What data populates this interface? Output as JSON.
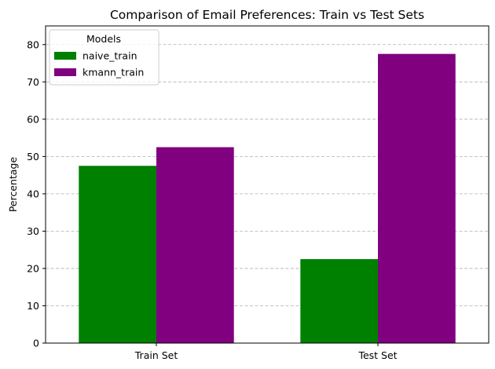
{
  "chart_data": {
    "type": "bar",
    "title": "Comparison of Email Preferences: Train vs Test Sets",
    "xlabel": "",
    "ylabel": "Percentage",
    "categories": [
      "Train Set",
      "Test Set"
    ],
    "series": [
      {
        "name": "naive_train",
        "values": [
          47.5,
          22.5
        ],
        "color": "#008000"
      },
      {
        "name": "kmann_train",
        "values": [
          52.5,
          77.5
        ],
        "color": "#800080"
      }
    ],
    "ylim": [
      0,
      85
    ],
    "yticks": [
      0,
      10,
      20,
      30,
      40,
      50,
      60,
      70,
      80
    ],
    "grid": "y-dashed",
    "legend": {
      "title": "Models",
      "position": "top-left"
    }
  }
}
